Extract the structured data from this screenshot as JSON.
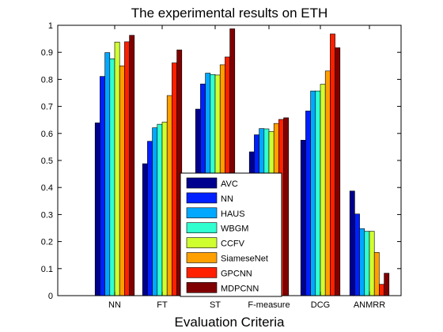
{
  "chart_data": {
    "type": "bar",
    "title": "The experimental results on ETH",
    "xlabel": "Evaluation Criteria",
    "ylabel": "",
    "ylim": [
      0,
      1
    ],
    "yticks": [
      "0",
      "0.1",
      "0.2",
      "0.3",
      "0.4",
      "0.5",
      "0.6",
      "0.7",
      "0.8",
      "0.9",
      "1"
    ],
    "grid": false,
    "legend_position": "bottom-center",
    "categories": [
      "NN",
      "FT",
      "ST",
      "F-measure",
      "DCG",
      "ANMRR"
    ],
    "series": [
      {
        "name": "AVC",
        "color": "#00008f",
        "values": [
          0.639,
          0.488,
          0.69,
          0.532,
          0.575,
          0.387
        ]
      },
      {
        "name": "NN",
        "color": "#0020ff",
        "values": [
          0.811,
          0.571,
          0.783,
          0.595,
          0.683,
          0.302
        ]
      },
      {
        "name": "HAUS",
        "color": "#00a8ff",
        "values": [
          0.899,
          0.621,
          0.823,
          0.618,
          0.757,
          0.248
        ]
      },
      {
        "name": "WBGM",
        "color": "#30ffd0",
        "values": [
          0.876,
          0.634,
          0.818,
          0.617,
          0.757,
          0.238
        ]
      },
      {
        "name": "CCFV",
        "color": "#d0ff30",
        "values": [
          0.938,
          0.642,
          0.816,
          0.607,
          0.782,
          0.238
        ]
      },
      {
        "name": "SiameseNet",
        "color": "#ff9f00",
        "values": [
          0.85,
          0.74,
          0.854,
          0.637,
          0.831,
          0.16
        ]
      },
      {
        "name": "GPCNN",
        "color": "#ff2000",
        "values": [
          0.939,
          0.861,
          0.883,
          0.652,
          0.968,
          0.042
        ]
      },
      {
        "name": "MDPCNN",
        "color": "#800000",
        "values": [
          0.963,
          0.909,
          0.987,
          0.658,
          0.917,
          0.083
        ]
      }
    ]
  }
}
